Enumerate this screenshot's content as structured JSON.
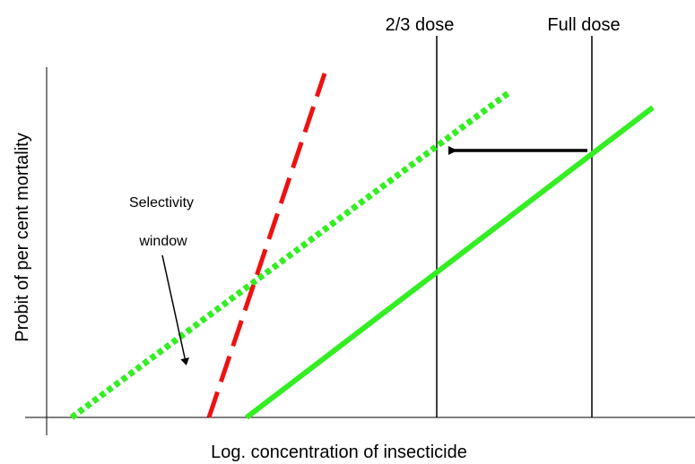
{
  "labels": {
    "two_thirds_dose": "2/3 dose",
    "full_dose": "Full dose",
    "selectivity": "Selectivity",
    "window": "window",
    "y_axis": "Probit of per cent mortality",
    "x_axis": "Log. concentration of insecticide"
  }
}
